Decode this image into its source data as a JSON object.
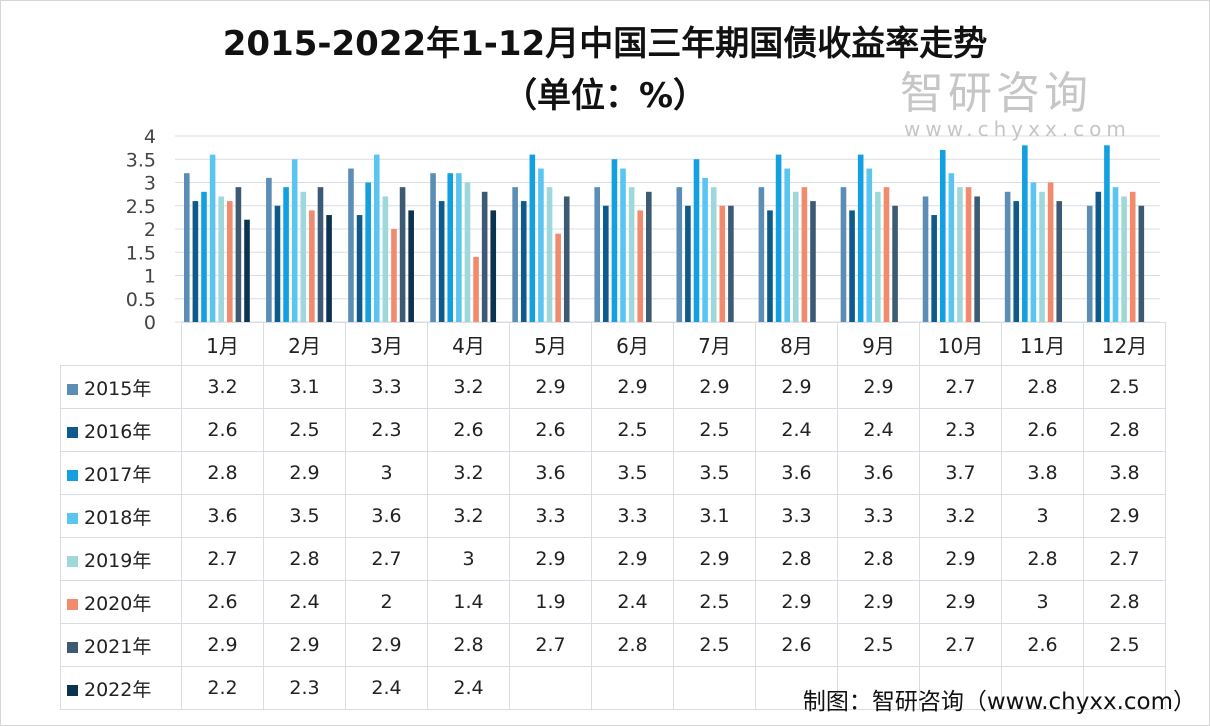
{
  "chart_data": {
    "type": "bar",
    "title": "2015-2022年1-12月中国三年期国债收益率走势",
    "subtitle": "（单位：%）",
    "categories": [
      "1月",
      "2月",
      "3月",
      "4月",
      "5月",
      "6月",
      "7月",
      "8月",
      "9月",
      "10月",
      "11月",
      "12月"
    ],
    "ylim": [
      0,
      4
    ],
    "yticks": [
      "0",
      "0.5",
      "1",
      "1.5",
      "2",
      "2.5",
      "3",
      "3.5",
      "4"
    ],
    "grid": true,
    "legend": "data-table",
    "series": [
      {
        "name": "2015年",
        "color": "#5b8db5",
        "values": [
          3.2,
          3.1,
          3.3,
          3.2,
          2.9,
          2.9,
          2.9,
          2.9,
          2.9,
          2.7,
          2.8,
          2.5
        ]
      },
      {
        "name": "2016年",
        "color": "#0e5a8a",
        "values": [
          2.6,
          2.5,
          2.3,
          2.6,
          2.6,
          2.5,
          2.5,
          2.4,
          2.4,
          2.3,
          2.6,
          2.8
        ]
      },
      {
        "name": "2017年",
        "color": "#12a0e0",
        "values": [
          2.8,
          2.9,
          3,
          3.2,
          3.6,
          3.5,
          3.5,
          3.6,
          3.6,
          3.7,
          3.8,
          3.8
        ]
      },
      {
        "name": "2018年",
        "color": "#5bc5f2",
        "values": [
          3.6,
          3.5,
          3.6,
          3.2,
          3.3,
          3.3,
          3.1,
          3.3,
          3.3,
          3.2,
          3,
          2.9
        ]
      },
      {
        "name": "2019年",
        "color": "#9fd8db",
        "values": [
          2.7,
          2.8,
          2.7,
          3,
          2.9,
          2.9,
          2.9,
          2.8,
          2.8,
          2.9,
          2.8,
          2.7
        ]
      },
      {
        "name": "2020年",
        "color": "#f28b6e",
        "values": [
          2.6,
          2.4,
          2,
          1.4,
          1.9,
          2.4,
          2.5,
          2.9,
          2.9,
          2.9,
          3,
          2.8
        ]
      },
      {
        "name": "2021年",
        "color": "#3c5a73",
        "values": [
          2.9,
          2.9,
          2.9,
          2.8,
          2.7,
          2.8,
          2.5,
          2.6,
          2.5,
          2.7,
          2.6,
          2.5
        ]
      },
      {
        "name": "2022年",
        "color": "#0b3350",
        "values": [
          2.2,
          2.3,
          2.4,
          2.4,
          null,
          null,
          null,
          null,
          null,
          null,
          null,
          null
        ]
      }
    ]
  },
  "watermark": {
    "logo": "智研咨询",
    "url": "www.chyxx.com"
  },
  "source": "制图：智研咨询（www.chyxx.com）"
}
